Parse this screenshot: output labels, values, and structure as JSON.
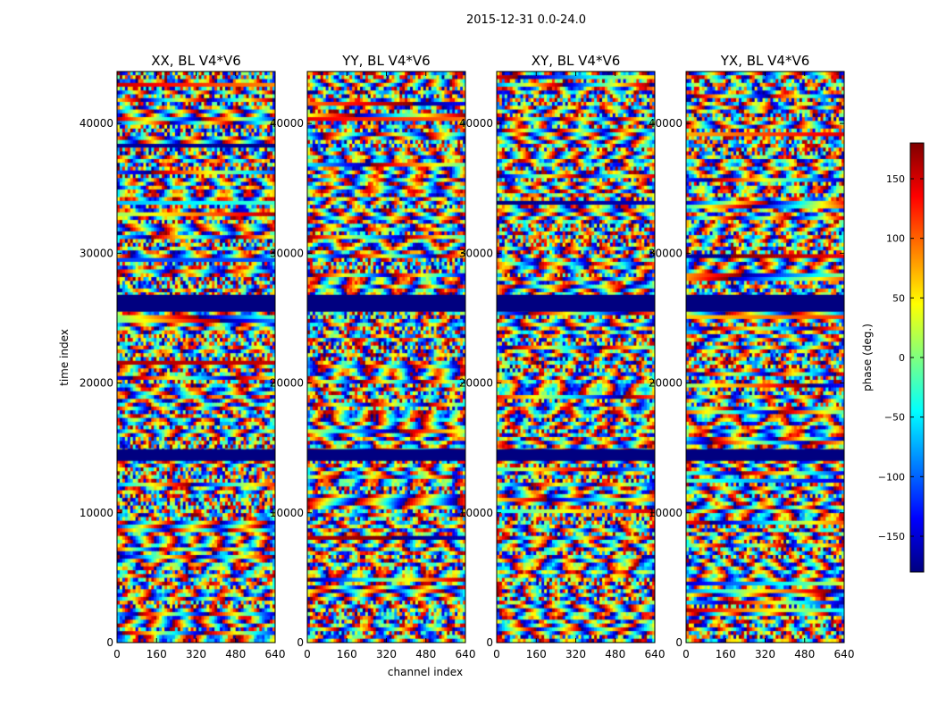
{
  "figure": {
    "suptitle": "2015-12-31 0.0-24.0",
    "xlabel": "channel index",
    "ylabel": "time index"
  },
  "chart_data": {
    "type": "heatmap",
    "x_range": [
      0,
      640
    ],
    "y_range": [
      0,
      44000
    ],
    "x_ticks": [
      "0",
      "160",
      "320",
      "480",
      "640"
    ],
    "y_ticks": [
      "0",
      "10000",
      "20000",
      "30000",
      "40000"
    ],
    "x_tick_values": [
      0,
      160,
      320,
      480,
      640
    ],
    "y_tick_values": [
      0,
      10000,
      20000,
      30000,
      40000
    ],
    "panels": [
      {
        "title": "XX, BL V4*V6"
      },
      {
        "title": "YY, BL V4*V6"
      },
      {
        "title": "XY, BL V4*V6"
      },
      {
        "title": "YX, BL V4*V6"
      }
    ],
    "flagged_time_ranges": [
      [
        25500,
        26800
      ],
      [
        14000,
        14900
      ]
    ],
    "colorbar": {
      "label": "phase (deg.)",
      "range": [
        -180,
        180
      ],
      "ticks": [
        "150",
        "100",
        "50",
        "0",
        "−50",
        "−100",
        "−150"
      ],
      "tick_values": [
        150,
        100,
        50,
        0,
        -50,
        -100,
        -150
      ],
      "colormap": "jet",
      "colormap_stops": [
        "#00007f",
        "#0000ff",
        "#007fff",
        "#00ffff",
        "#7fff7f",
        "#ffff00",
        "#ff7f00",
        "#ff0000",
        "#7f0000"
      ]
    }
  }
}
